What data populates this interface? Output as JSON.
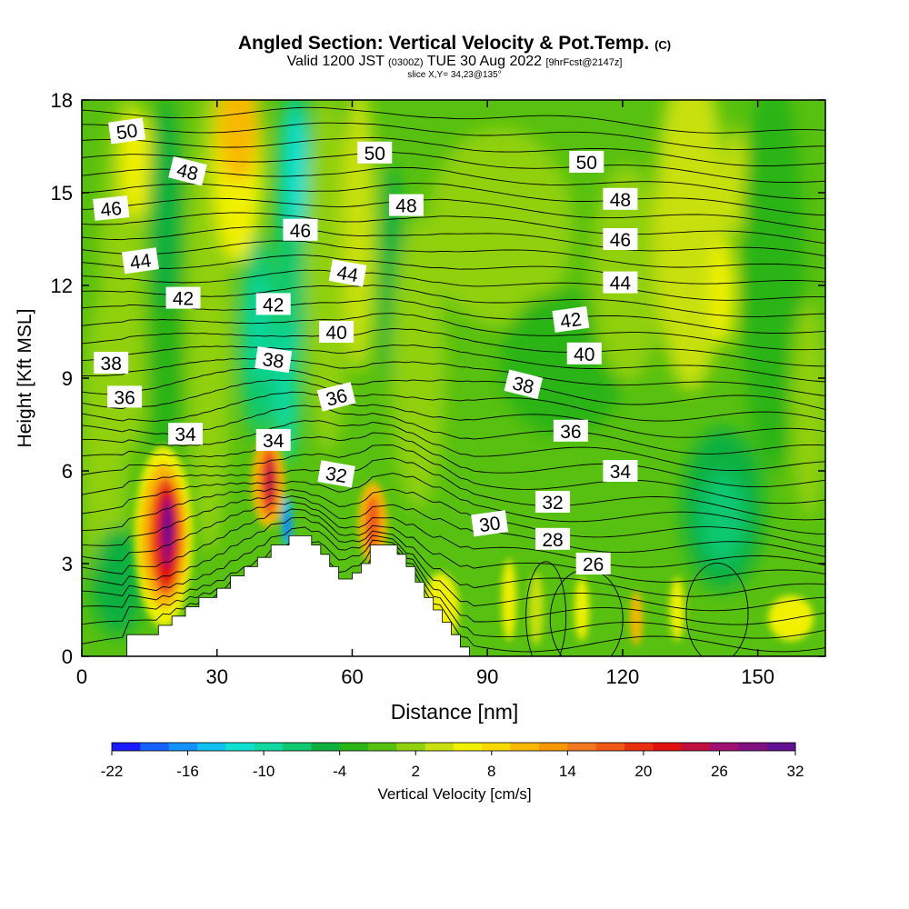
{
  "header": {
    "title": "Angled Section: Vertical Velocity & Pot.Temp.",
    "title_units": "(C)",
    "valid_prefix": "Valid 1200 JST",
    "valid_utc": "(0300Z)",
    "valid_date": "TUE 30 Aug 2022",
    "forecast": "[9hrFcst@2147z]",
    "slice": "slice X,Y= 34,23@135°"
  },
  "chart_data": {
    "type": "heatmap",
    "xlabel": "Distance [nm]",
    "ylabel": "Height [Kft MSL]",
    "xlim": [
      0,
      165
    ],
    "ylim": [
      0,
      18
    ],
    "x_ticks": [
      0,
      30,
      60,
      90,
      120,
      150
    ],
    "y_ticks": [
      0,
      3,
      6,
      9,
      12,
      15,
      18
    ],
    "colorbar": {
      "label": "Vertical Velocity [cm/s]",
      "range": [
        -22,
        32
      ],
      "tick_labels": [
        "-22",
        "-16",
        "-10",
        "-4",
        "2",
        "8",
        "14",
        "20",
        "26",
        "32"
      ],
      "colors": [
        "#1a1aff",
        "#1560ff",
        "#1590ff",
        "#10c0f0",
        "#10e0d0",
        "#10d8a0",
        "#10c870",
        "#10b040",
        "#2ab418",
        "#58c010",
        "#90d010",
        "#c8e010",
        "#f0f000",
        "#f8d800",
        "#f8b800",
        "#f89800",
        "#f07820",
        "#f05818",
        "#e83010",
        "#e01010",
        "#c01040",
        "#a01070",
        "#801080",
        "#601090"
      ]
    },
    "terrain_profile": [
      [
        0,
        0
      ],
      [
        10,
        0
      ],
      [
        10,
        0.7
      ],
      [
        16,
        0.7
      ],
      [
        16,
        0.7
      ],
      [
        17,
        0.7
      ],
      [
        17,
        1.0
      ],
      [
        20,
        1.0
      ],
      [
        20,
        1.3
      ],
      [
        23,
        1.3
      ],
      [
        23,
        1.6
      ],
      [
        26,
        1.6
      ],
      [
        26,
        1.9
      ],
      [
        30,
        1.9
      ],
      [
        30,
        2.2
      ],
      [
        33,
        2.2
      ],
      [
        33,
        2.6
      ],
      [
        36,
        2.6
      ],
      [
        36,
        2.9
      ],
      [
        39,
        2.9
      ],
      [
        39,
        3.2
      ],
      [
        42,
        3.2
      ],
      [
        42,
        3.6
      ],
      [
        46,
        3.6
      ],
      [
        46,
        3.9
      ],
      [
        51,
        3.9
      ],
      [
        51,
        3.6
      ],
      [
        53,
        3.6
      ],
      [
        53,
        3.3
      ],
      [
        55,
        3.3
      ],
      [
        55,
        2.9
      ],
      [
        57,
        2.9
      ],
      [
        57,
        2.5
      ],
      [
        60,
        2.5
      ],
      [
        60,
        2.7
      ],
      [
        62,
        2.7
      ],
      [
        62,
        3.0
      ],
      [
        64,
        3.0
      ],
      [
        64,
        3.6
      ],
      [
        70,
        3.6
      ],
      [
        70,
        3.3
      ],
      [
        72,
        3.3
      ],
      [
        72,
        2.9
      ],
      [
        74,
        2.9
      ],
      [
        74,
        2.4
      ],
      [
        76,
        2.4
      ],
      [
        76,
        1.9
      ],
      [
        78,
        1.9
      ],
      [
        78,
        1.5
      ],
      [
        80,
        1.5
      ],
      [
        80,
        1.1
      ],
      [
        82,
        1.1
      ],
      [
        82,
        0.7
      ],
      [
        84,
        0.7
      ],
      [
        84,
        0.3
      ],
      [
        86,
        0.3
      ],
      [
        86,
        0
      ],
      [
        165,
        0
      ]
    ],
    "isentrope_labels": [
      {
        "text": "50",
        "x": 10,
        "y": 17.0,
        "angle": -8
      },
      {
        "text": "48",
        "x": 23.5,
        "y": 15.7,
        "angle": 14
      },
      {
        "text": "46",
        "x": 6.5,
        "y": 14.5,
        "angle": -6
      },
      {
        "text": "44",
        "x": 13,
        "y": 12.8,
        "angle": -8
      },
      {
        "text": "42",
        "x": 22.5,
        "y": 11.6,
        "angle": 0
      },
      {
        "text": "38",
        "x": 6.5,
        "y": 9.5,
        "angle": 0
      },
      {
        "text": "36",
        "x": 9.5,
        "y": 8.4,
        "angle": 0
      },
      {
        "text": "34",
        "x": 23,
        "y": 7.2,
        "angle": 0
      },
      {
        "text": "46",
        "x": 48.5,
        "y": 13.8,
        "angle": 0
      },
      {
        "text": "42",
        "x": 42.5,
        "y": 11.4,
        "angle": 0
      },
      {
        "text": "38",
        "x": 42.5,
        "y": 9.6,
        "angle": 8
      },
      {
        "text": "34",
        "x": 42.5,
        "y": 7.0,
        "angle": 0
      },
      {
        "text": "50",
        "x": 65,
        "y": 16.3,
        "angle": 0
      },
      {
        "text": "48",
        "x": 72,
        "y": 14.6,
        "angle": 0
      },
      {
        "text": "44",
        "x": 59,
        "y": 12.4,
        "angle": 10
      },
      {
        "text": "40",
        "x": 56.5,
        "y": 10.5,
        "angle": 0
      },
      {
        "text": "36",
        "x": 56.5,
        "y": 8.4,
        "angle": -14
      },
      {
        "text": "32",
        "x": 56.5,
        "y": 5.9,
        "angle": 10
      },
      {
        "text": "50",
        "x": 112,
        "y": 16.0,
        "angle": 0
      },
      {
        "text": "48",
        "x": 119.5,
        "y": 14.8,
        "angle": 0
      },
      {
        "text": "46",
        "x": 119.5,
        "y": 13.5,
        "angle": 0
      },
      {
        "text": "44",
        "x": 119.5,
        "y": 12.1,
        "angle": 0
      },
      {
        "text": "42",
        "x": 108.5,
        "y": 10.9,
        "angle": -8
      },
      {
        "text": "40",
        "x": 111.5,
        "y": 9.8,
        "angle": 0
      },
      {
        "text": "38",
        "x": 98,
        "y": 8.8,
        "angle": 14
      },
      {
        "text": "36",
        "x": 108.5,
        "y": 7.3,
        "angle": 0
      },
      {
        "text": "34",
        "x": 119.5,
        "y": 6.0,
        "angle": 0
      },
      {
        "text": "32",
        "x": 104.5,
        "y": 5.0,
        "angle": 0
      },
      {
        "text": "30",
        "x": 90.5,
        "y": 4.3,
        "angle": -8
      },
      {
        "text": "28",
        "x": 104.5,
        "y": 3.8,
        "angle": 0
      },
      {
        "text": "26",
        "x": 113.5,
        "y": 3.0,
        "angle": 0
      }
    ]
  }
}
